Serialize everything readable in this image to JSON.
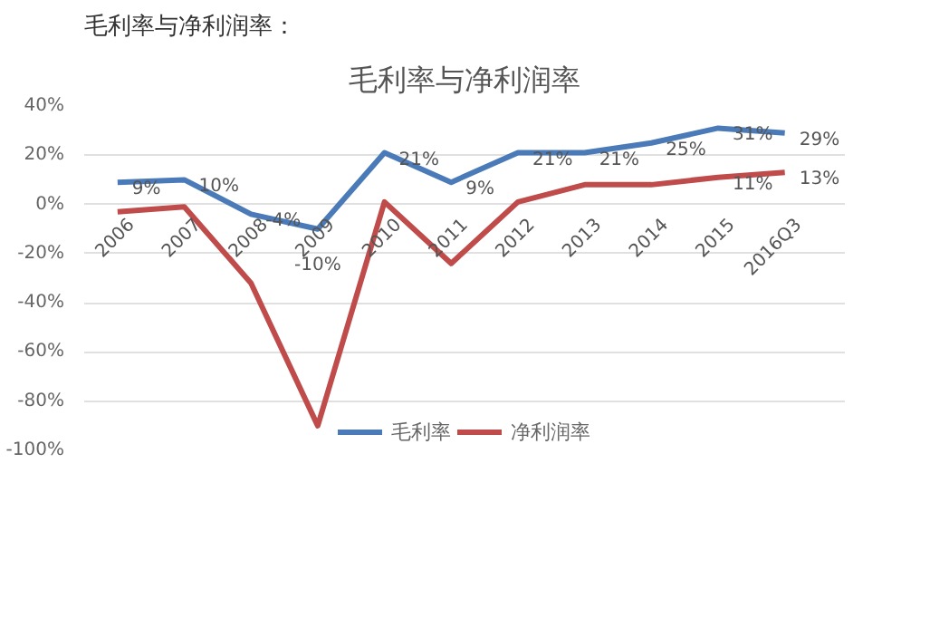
{
  "chart_data": {
    "type": "line",
    "title": "毛利率与净利润率",
    "annotations": [
      "毛利率与净利润率："
    ],
    "categories": [
      "2006",
      "2007",
      "2008",
      "2009",
      "2010",
      "2011",
      "2012",
      "2013",
      "2014",
      "2015",
      "2016Q3"
    ],
    "series": [
      {
        "name": "毛利率",
        "color": "#4a7ab8",
        "values": [
          9,
          10,
          -4,
          -10,
          21,
          9,
          21,
          21,
          25,
          31,
          29
        ],
        "value_labels": [
          "9%",
          "10%",
          "-4%",
          "-10%",
          "21%",
          "9%",
          "21%",
          "21%",
          "25%",
          "31%",
          "29%"
        ]
      },
      {
        "name": "净利润率",
        "color": "#bf4b4b",
        "values": [
          -3,
          -1,
          -32,
          -90,
          1,
          -24,
          1,
          8,
          8,
          11,
          13
        ],
        "value_labels": [
          null,
          null,
          null,
          null,
          null,
          null,
          null,
          null,
          null,
          "11%",
          "13%"
        ]
      }
    ],
    "ylim": [
      -100,
      40
    ],
    "yticks": [
      {
        "value": -100,
        "label": "-100%"
      },
      {
        "value": -80,
        "label": "-80%"
      },
      {
        "value": -60,
        "label": "-60%"
      },
      {
        "value": -40,
        "label": "-40%"
      },
      {
        "value": -20,
        "label": "-20%"
      },
      {
        "value": 0,
        "label": "0%"
      },
      {
        "value": 20,
        "label": "20%"
      },
      {
        "value": 40,
        "label": "40%"
      }
    ],
    "grid": "y",
    "legend": "bottom",
    "marker": "none",
    "line_style": "solid"
  }
}
